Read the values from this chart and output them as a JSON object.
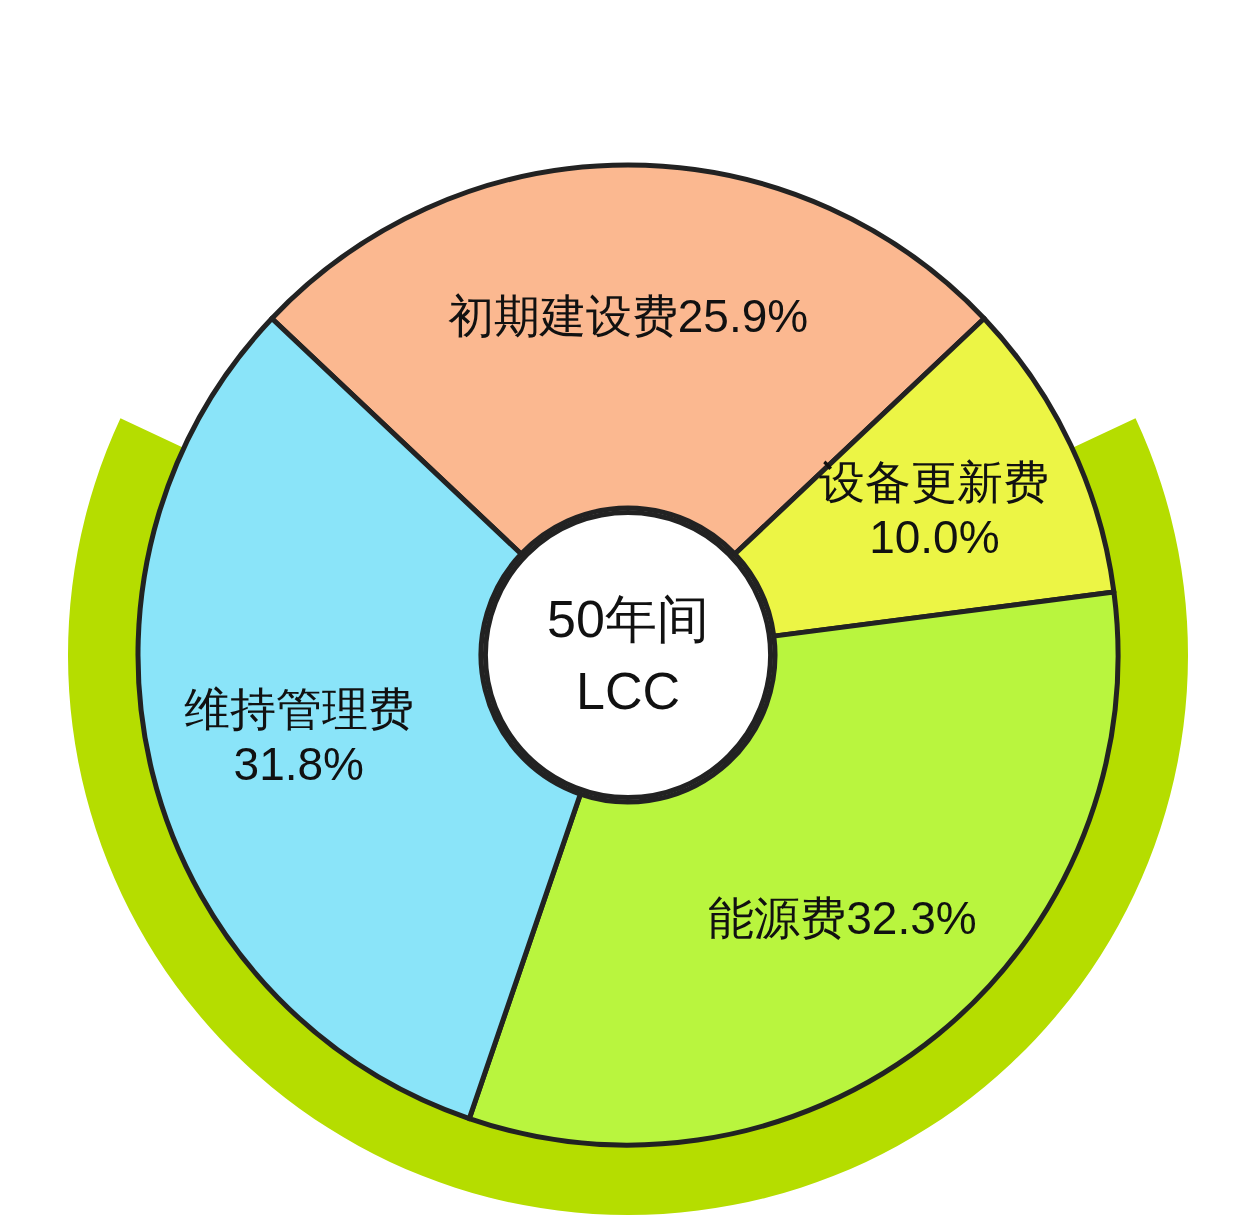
{
  "chart_data": {
    "type": "donut",
    "categories": [
      "初期建设费",
      "设备更新费",
      "能源费",
      "维持管理费"
    ],
    "values": [
      25.9,
      10.0,
      32.3,
      31.8
    ],
    "colors": [
      "#fbb890",
      "#ecf545",
      "#b9f53e",
      "#8ae4f9"
    ],
    "value_labels": [
      "25.9%",
      "10.0%",
      "32.3%",
      "31.8%"
    ],
    "annotations": [
      "50年间",
      "LCC"
    ]
  }
}
